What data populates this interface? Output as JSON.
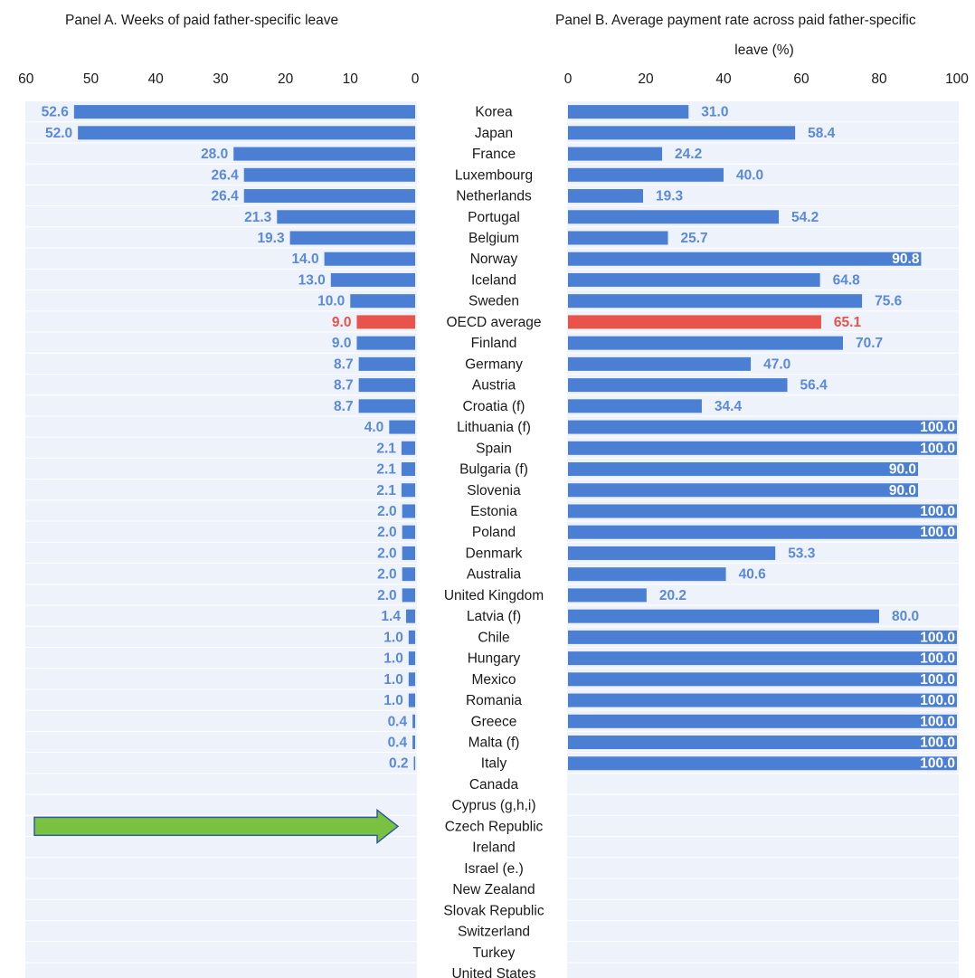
{
  "chart_data": [
    {
      "type": "bar",
      "orientation": "horizontal",
      "direction": "reversed",
      "title": "Panel A. Weeks of paid father-specific leave",
      "xlim": [
        60,
        0
      ],
      "xticks": [
        60,
        50,
        40,
        30,
        20,
        10,
        0
      ],
      "grid": false,
      "highlight": "OECD average",
      "values": [
        52.6,
        52.0,
        28.0,
        26.4,
        26.4,
        21.3,
        19.3,
        14.0,
        13.0,
        10.0,
        9.0,
        9.0,
        8.7,
        8.7,
        8.7,
        4.0,
        2.1,
        2.1,
        2.1,
        2.0,
        2.0,
        2.0,
        2.0,
        2.0,
        1.4,
        1.0,
        1.0,
        1.0,
        1.0,
        0.4,
        0.4,
        0.2,
        null,
        null,
        null,
        null,
        null,
        null,
        null,
        null,
        null,
        null
      ],
      "labels": [
        "52.6",
        "52.0",
        "28.0",
        "26.4",
        "26.4",
        "21.3",
        "19.3",
        "14.0",
        "13.0",
        "10.0",
        "9.0",
        "9.0",
        "8.7",
        "8.7",
        "8.7",
        "4.0",
        "2.1",
        "2.1",
        "2.1",
        "2.0",
        "2.0",
        "2.0",
        "2.0",
        "2.0",
        "1.4",
        "1.0",
        "1.0",
        "1.0",
        "1.0",
        "0.4",
        "0.4",
        "0.2",
        "",
        "",
        "",
        "",
        "",
        "",
        "",
        "",
        "",
        ""
      ]
    },
    {
      "type": "bar",
      "orientation": "horizontal",
      "title_lines": [
        "Panel B. Average payment rate across paid father-specific",
        "leave (%)"
      ],
      "xlim": [
        0,
        100
      ],
      "xticks": [
        0,
        20,
        40,
        60,
        80,
        100
      ],
      "grid": false,
      "highlight": "OECD average",
      "values": [
        31.0,
        58.4,
        24.2,
        40.0,
        19.3,
        54.2,
        25.7,
        90.8,
        64.8,
        75.6,
        65.1,
        70.7,
        47.0,
        56.4,
        34.4,
        100.0,
        100.0,
        90.0,
        90.0,
        100.0,
        100.0,
        53.3,
        40.6,
        20.2,
        80.0,
        100.0,
        100.0,
        100.0,
        100.0,
        100.0,
        100.0,
        100.0,
        null,
        null,
        null,
        null,
        null,
        null,
        null,
        null,
        null,
        null
      ],
      "labels": [
        "31.0",
        "58.4",
        "24.2",
        "40.0",
        "19.3",
        "54.2",
        "25.7",
        "90.8",
        "64.8",
        "75.6",
        "65.1",
        "70.7",
        "47.0",
        "56.4",
        "34.4",
        "100.0",
        "100.0",
        "90.0",
        "90.0",
        "100.0",
        "100.0",
        "53.3",
        "40.6",
        "20.2",
        "80.0",
        "100.0",
        "100.0",
        "100.0",
        "100.0",
        "100.0",
        "100.0",
        "100.0",
        "",
        "",
        "",
        "",
        "",
        "",
        "",
        "",
        "",
        ""
      ]
    }
  ],
  "categories": [
    "Korea",
    "Japan",
    "France",
    "Luxembourg",
    "Netherlands",
    "Portugal",
    "Belgium",
    "Norway",
    "Iceland",
    "Sweden",
    "OECD average",
    "Finland",
    "Germany",
    "Austria",
    "Croatia (f)",
    "Lithuania (f)",
    "Spain",
    "Bulgaria (f)",
    "Slovenia",
    "Estonia",
    "Poland",
    "Denmark",
    "Australia",
    "United Kingdom",
    "Latvia (f)",
    "Chile",
    "Hungary",
    "Mexico",
    "Romania",
    "Greece",
    "Malta (f)",
    "Italy",
    "Canada",
    "Cyprus (g,h,i)",
    "Czech Republic",
    "Ireland",
    "Israel (e.)",
    "New Zealand",
    "Slovak Republic",
    "Switzerland",
    "Turkey",
    "United States"
  ],
  "colors": {
    "bar": "#4a7fd4",
    "highlight": "#e8534a",
    "band": "#eef2fa",
    "label": "#5a8ad8",
    "arrow_fill": "#7ac142",
    "arrow_stroke": "#2e5d9e"
  },
  "annotation": {
    "type": "arrow",
    "points_to": "Czech Republic",
    "color": "green"
  }
}
